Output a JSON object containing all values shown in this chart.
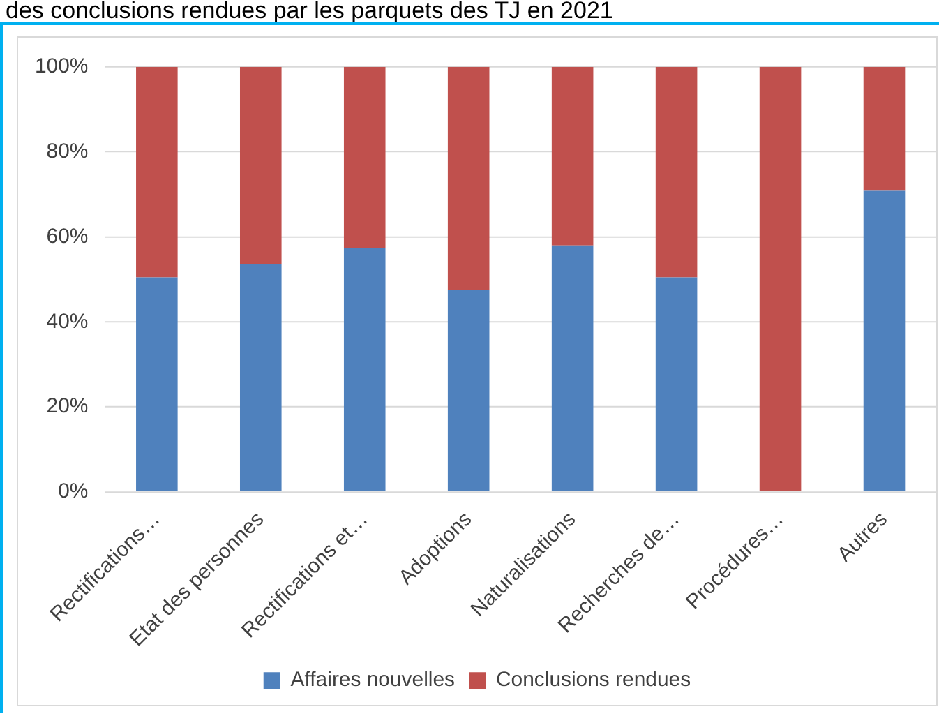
{
  "chart_data": {
    "type": "bar",
    "title": "des conclusions rendues par les parquets des TJ en 2021",
    "categories": [
      "Rectifications…",
      "Etat des personnes",
      "Rectifications et…",
      "Adoptions",
      "Naturalisations",
      "Recherches de…",
      "Procédures…",
      "Autres"
    ],
    "series": [
      {
        "name": "Affaires nouvelles",
        "color": "#4f81bd",
        "values": [
          50.5,
          53.7,
          57.3,
          47.6,
          58.0,
          50.5,
          0,
          71.0
        ]
      },
      {
        "name": "Conclusions rendues",
        "color": "#c0504d",
        "values": [
          49.5,
          46.3,
          42.7,
          52.4,
          42.0,
          49.5,
          100,
          29.0
        ]
      }
    ],
    "stacked": true,
    "ylim": [
      0,
      100
    ],
    "yticks": [
      {
        "value": 0,
        "label": "0%"
      },
      {
        "value": 20,
        "label": "20%"
      },
      {
        "value": 40,
        "label": "40%"
      },
      {
        "value": 60,
        "label": "60%"
      },
      {
        "value": 80,
        "label": "80%"
      },
      {
        "value": 100,
        "label": "100%"
      }
    ],
    "grid": "y",
    "legend": "bottom"
  }
}
